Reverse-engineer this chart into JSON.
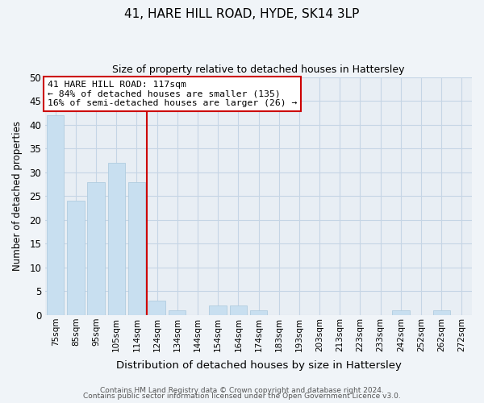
{
  "title": "41, HARE HILL ROAD, HYDE, SK14 3LP",
  "subtitle": "Size of property relative to detached houses in Hattersley",
  "xlabel": "Distribution of detached houses by size in Hattersley",
  "ylabel": "Number of detached properties",
  "bar_labels": [
    "75sqm",
    "85sqm",
    "95sqm",
    "105sqm",
    "114sqm",
    "124sqm",
    "134sqm",
    "144sqm",
    "154sqm",
    "164sqm",
    "174sqm",
    "183sqm",
    "193sqm",
    "203sqm",
    "213sqm",
    "223sqm",
    "233sqm",
    "242sqm",
    "252sqm",
    "262sqm",
    "272sqm"
  ],
  "bar_values": [
    42,
    24,
    28,
    32,
    28,
    3,
    1,
    0,
    2,
    2,
    1,
    0,
    0,
    0,
    0,
    0,
    0,
    1,
    0,
    1,
    0
  ],
  "bar_color": "#c8dff0",
  "bar_edge_color": "#b0cce0",
  "highlight_index": 4,
  "highlight_line_color": "#cc0000",
  "annotation_title": "41 HARE HILL ROAD: 117sqm",
  "annotation_line1": "← 84% of detached houses are smaller (135)",
  "annotation_line2": "16% of semi-detached houses are larger (26) →",
  "annotation_box_edge": "#cc0000",
  "ylim": [
    0,
    50
  ],
  "yticks": [
    0,
    5,
    10,
    15,
    20,
    25,
    30,
    35,
    40,
    45,
    50
  ],
  "footer1": "Contains HM Land Registry data © Crown copyright and database right 2024.",
  "footer2": "Contains public sector information licensed under the Open Government Licence v3.0.",
  "bg_color": "#f0f4f8",
  "plot_bg_color": "#e8eef4",
  "grid_color": "#c5d5e5"
}
